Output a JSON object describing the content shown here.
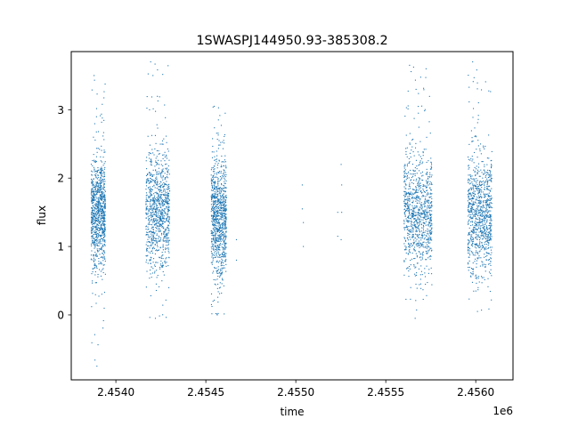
{
  "chart_data": {
    "type": "scatter",
    "title": "1SWASPJ144950.93-385308.2",
    "xlabel": "time",
    "ylabel": "flux",
    "x_offset_label": "1e6",
    "xlim": [
      2453752,
      2456207
    ],
    "ylim": [
      -0.95,
      3.85
    ],
    "x_ticks": [
      2.454,
      2.4545,
      2.455,
      2.4555,
      2.456
    ],
    "x_tick_labels": [
      "2.4540",
      "2.4545",
      "2.4550",
      "2.4555",
      "2.4560"
    ],
    "y_ticks": [
      0,
      1,
      2,
      3
    ],
    "y_tick_labels": [
      "0",
      "1",
      "2",
      "3"
    ],
    "grid": false,
    "legend": "none",
    "marker_color": "#1f77b4",
    "series": [
      {
        "segments": [
          {
            "x_start": 2453863,
            "x_end": 2453942,
            "median_flux": 1.5,
            "spread": 0.4,
            "min_flux": -0.75,
            "max_flux": 3.5
          },
          {
            "x_start": 2454167,
            "x_end": 2454299,
            "median_flux": 1.55,
            "spread": 0.42,
            "min_flux": -0.05,
            "max_flux": 3.7
          },
          {
            "x_start": 2454530,
            "x_end": 2454614,
            "median_flux": 1.45,
            "spread": 0.42,
            "min_flux": 0.0,
            "max_flux": 3.05
          },
          {
            "x_start": 2455601,
            "x_end": 2455757,
            "median_flux": 1.5,
            "spread": 0.42,
            "min_flux": -0.05,
            "max_flux": 3.65
          },
          {
            "x_start": 2455956,
            "x_end": 2456090,
            "median_flux": 1.5,
            "spread": 0.44,
            "min_flux": 0.05,
            "max_flux": 3.7
          }
        ],
        "isolated_points": [
          {
            "x": 2454670,
            "y": 1.1
          },
          {
            "x": 2454670,
            "y": 0.8
          },
          {
            "x": 2455036,
            "y": 1.9
          },
          {
            "x": 2455036,
            "y": 1.55
          },
          {
            "x": 2455042,
            "y": 1.35
          },
          {
            "x": 2455042,
            "y": 1.0
          },
          {
            "x": 2455233,
            "y": 1.5
          },
          {
            "x": 2455233,
            "y": 1.15
          },
          {
            "x": 2455252,
            "y": 1.1
          },
          {
            "x": 2455252,
            "y": 2.2
          },
          {
            "x": 2455255,
            "y": 1.9
          },
          {
            "x": 2455255,
            "y": 1.5
          }
        ]
      }
    ]
  }
}
